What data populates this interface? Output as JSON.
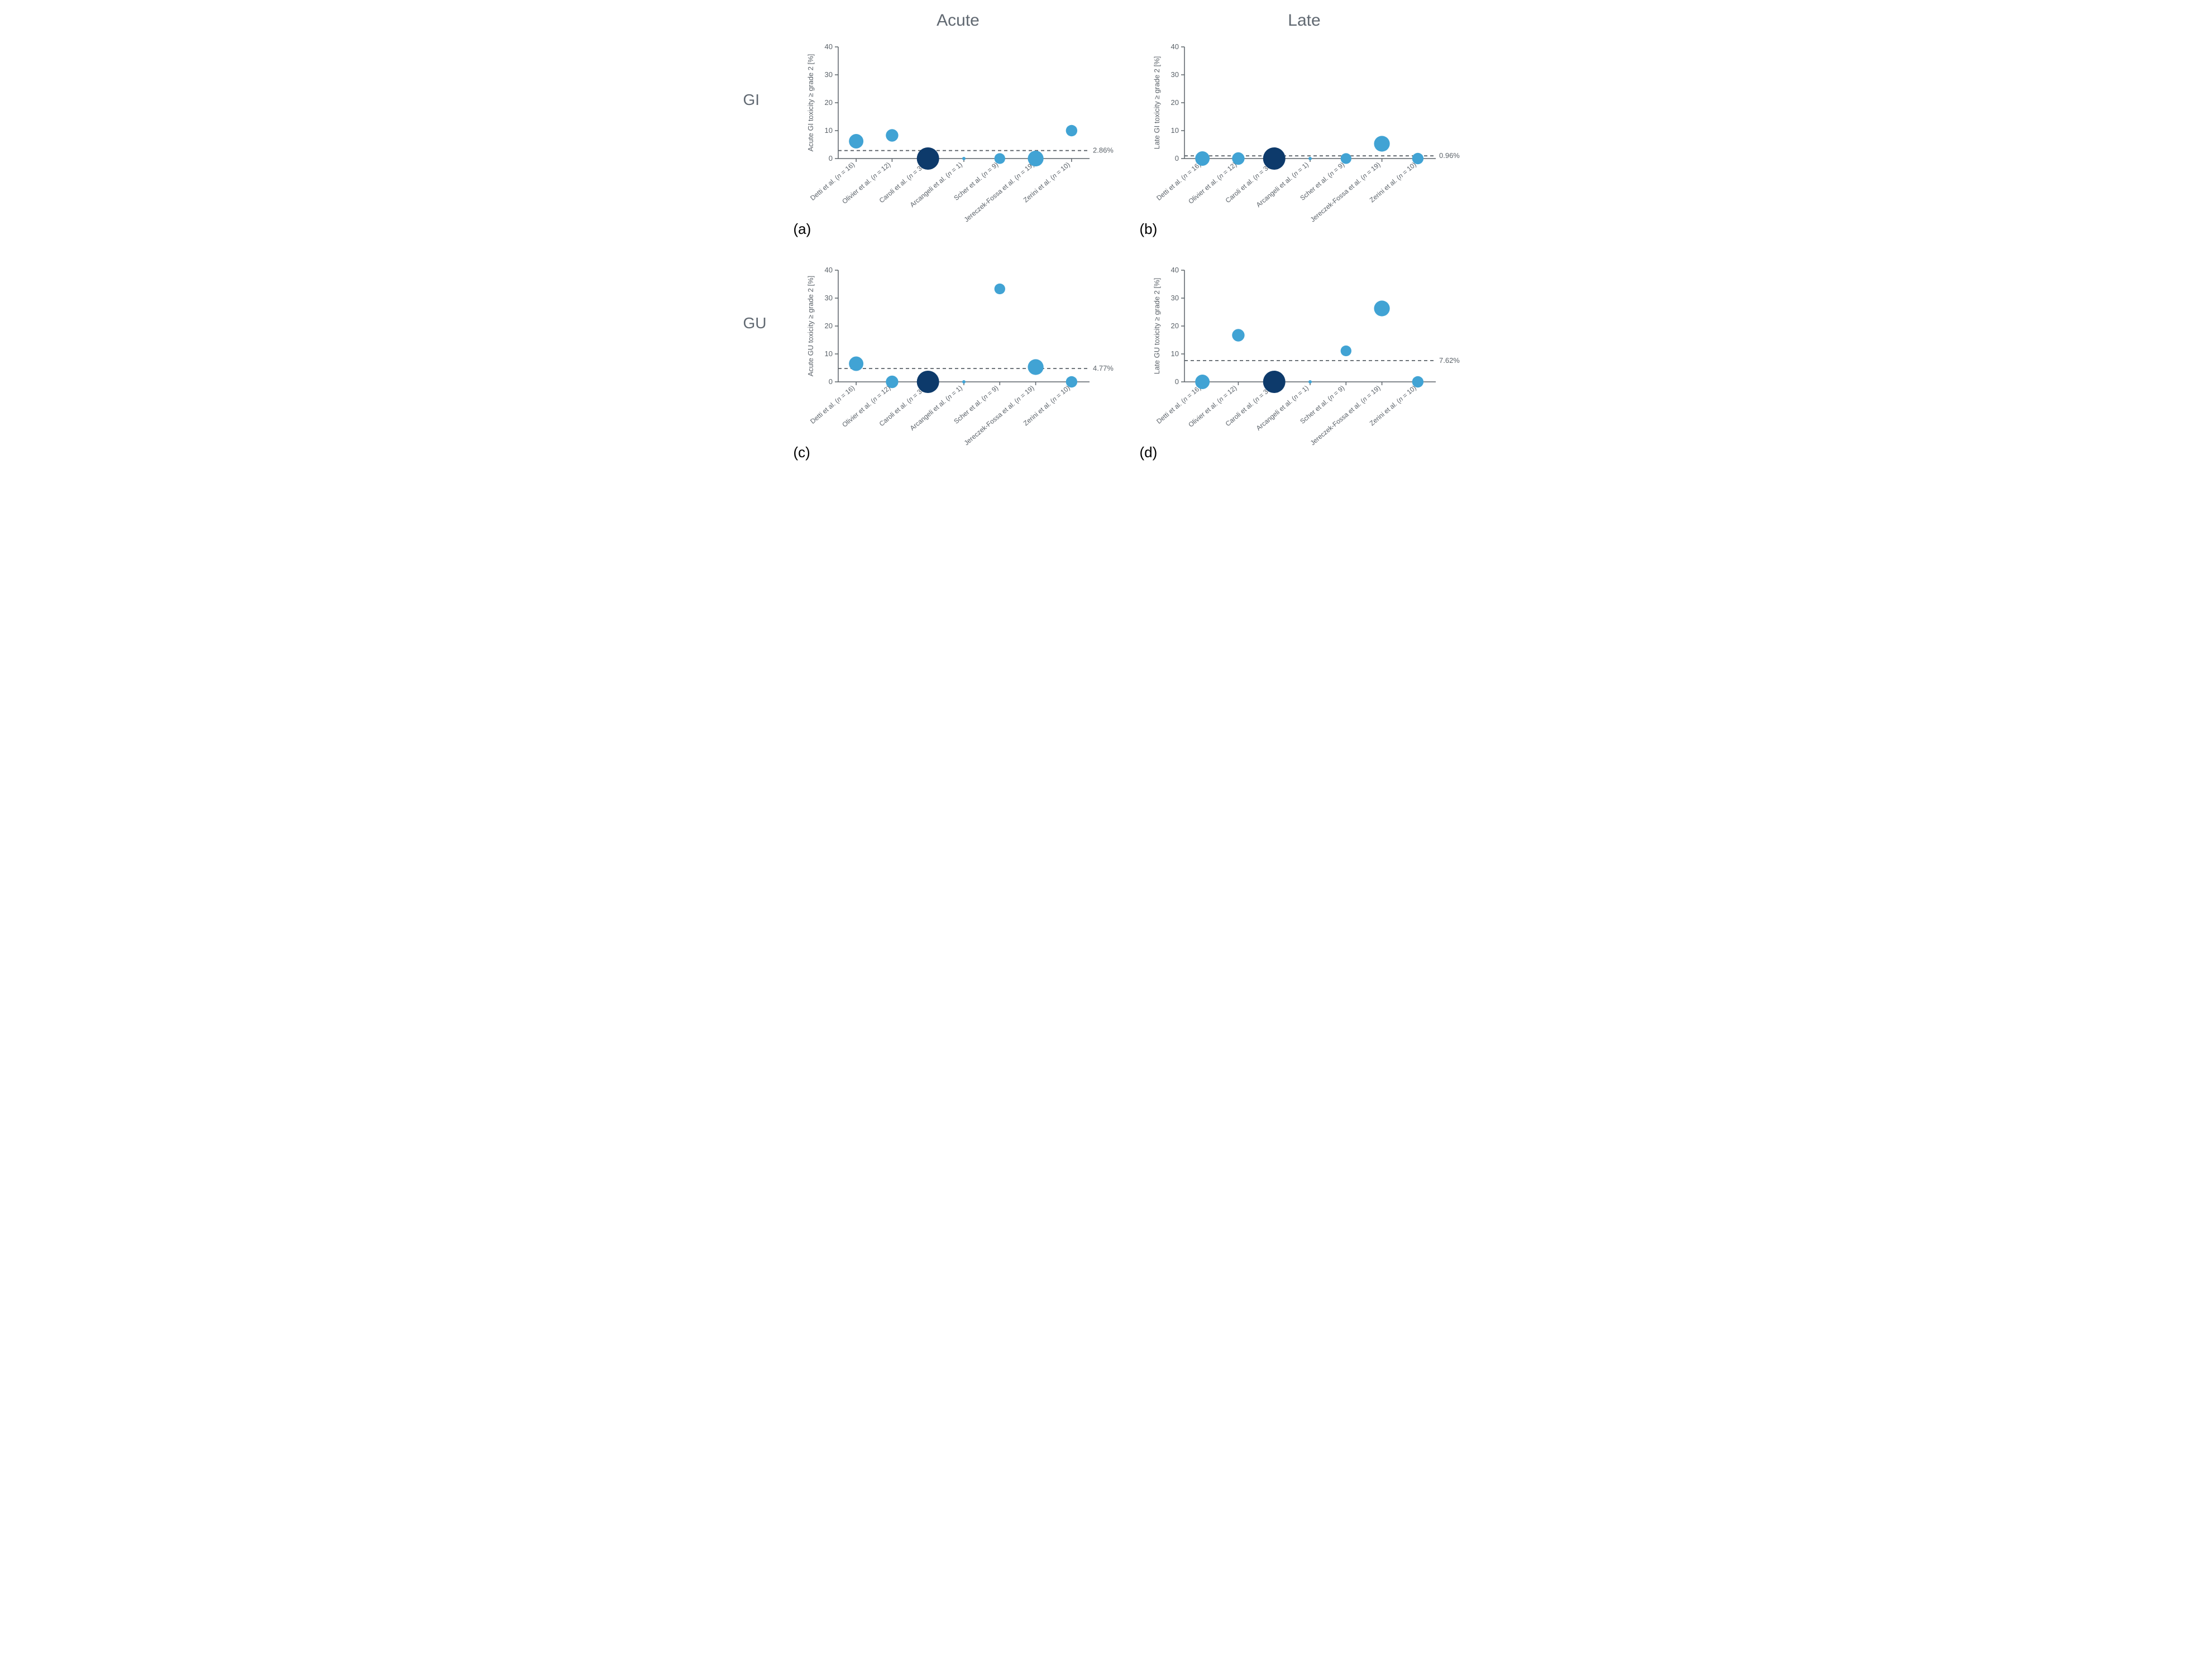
{
  "layout": {
    "figure_background": "#ffffff",
    "grid_columns": 2,
    "grid_rows": 2,
    "col_titles_fontsize": 30,
    "row_labels_fontsize": 28,
    "panel_letter_fontsize": 26
  },
  "colors": {
    "axis": "#5b6269",
    "tick_text": "#5b6269",
    "threshold_line": "#5b6269",
    "point_light": "#41a3d4",
    "point_dark": "#0d3a6b",
    "text_dark": "#000000"
  },
  "typography": {
    "axis_label_fontsize": 13,
    "tick_fontsize": 13,
    "xlabel_fontsize": 12,
    "threshold_label_fontsize": 13
  },
  "column_titles": [
    "Acute",
    "Late"
  ],
  "row_labels": [
    "GI",
    "GU"
  ],
  "panel_letters": [
    "(a)",
    "(b)",
    "(c)",
    "(d)"
  ],
  "studies": [
    {
      "label": "Detti et al. (n = 16)",
      "n": 16
    },
    {
      "label": "Olivier et al. (n = 12)",
      "n": 12
    },
    {
      "label": "Caroli et al. (n = 38)",
      "n": 38
    },
    {
      "label": "Arcangeli et  al. (n = 1)",
      "n": 1
    },
    {
      "label": "Scher et al. (n = 9)",
      "n": 9
    },
    {
      "label": "Jereczek-Fossa et al. (n = 19)",
      "n": 19
    },
    {
      "label": "Zerini et al. (n = 10)",
      "n": 10
    }
  ],
  "bubble_size": {
    "min_radius": 3,
    "max_radius": 20,
    "min_n": 1,
    "max_n": 38
  },
  "axes": {
    "ylim": [
      0,
      40
    ],
    "yticks": [
      0,
      10,
      20,
      30,
      40
    ],
    "xlabel_rotation_deg": 40
  },
  "panels": [
    {
      "id": "a",
      "ylabel": "Acute GI toxicity ≥ grade 2 [%]",
      "threshold": 2.86,
      "threshold_label": "2.86%",
      "values": [
        6.2,
        8.3,
        0,
        0,
        0,
        0,
        10.0
      ]
    },
    {
      "id": "b",
      "ylabel": "Late GI toxicity ≥ grade 2 [%]",
      "threshold": 0.96,
      "threshold_label": "0.96%",
      "values": [
        0,
        0,
        0,
        0,
        0,
        5.3,
        0
      ]
    },
    {
      "id": "c",
      "ylabel": "Acute GU toxicity ≥ grade 2 [%]",
      "threshold": 4.77,
      "threshold_label": "4.77%",
      "values": [
        6.5,
        0,
        0,
        0,
        33.3,
        5.3,
        0
      ]
    },
    {
      "id": "d",
      "ylabel": "Late GU toxicity ≥ grade 2 [%]",
      "threshold": 7.62,
      "threshold_label": "7.62%",
      "values": [
        0,
        16.7,
        0,
        0,
        11.1,
        26.3,
        0
      ]
    }
  ],
  "chart_style": {
    "type": "bubble-scatter",
    "axis_line_width": 1.5,
    "tick_length": 6,
    "threshold_dash": "6,5",
    "point_stroke": "none",
    "dark_study_index": 2
  }
}
